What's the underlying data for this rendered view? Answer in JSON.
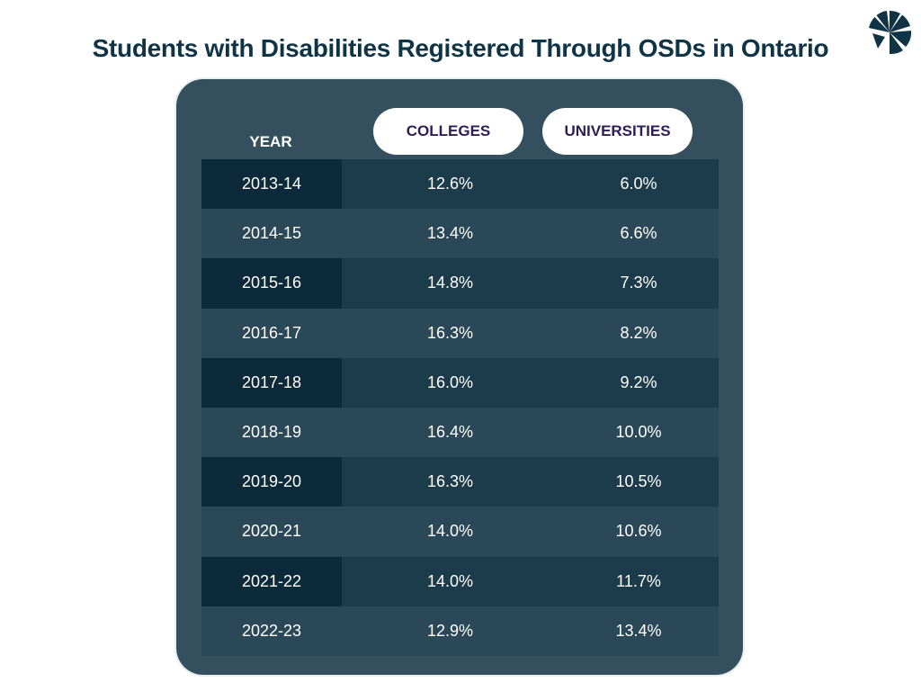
{
  "chart_data": {
    "type": "table",
    "title": "Students with Disabilities Registered Through OSDs in Ontario",
    "columns": [
      "YEAR",
      "COLLEGES",
      "UNIVERSITIES"
    ],
    "rows": [
      {
        "year": "2013-14",
        "colleges": "12.6%",
        "universities": "6.0%"
      },
      {
        "year": "2014-15",
        "colleges": "13.4%",
        "universities": "6.6%"
      },
      {
        "year": "2015-16",
        "colleges": "14.8%",
        "universities": "7.3%"
      },
      {
        "year": "2016-17",
        "colleges": "16.3%",
        "universities": "8.2%"
      },
      {
        "year": "2017-18",
        "colleges": "16.0%",
        "universities": "9.2%"
      },
      {
        "year": "2018-19",
        "colleges": "16.4%",
        "universities": "10.0%"
      },
      {
        "year": "2019-20",
        "colleges": "16.3%",
        "universities": "10.5%"
      },
      {
        "year": "2020-21",
        "colleges": "14.0%",
        "universities": "10.6%"
      },
      {
        "year": "2021-22",
        "colleges": "14.0%",
        "universities": "11.7%"
      },
      {
        "year": "2022-23",
        "colleges": "12.9%",
        "universities": "13.4%"
      }
    ]
  },
  "icons": {
    "logo": "brand-logo-icon"
  },
  "colors": {
    "title": "#0f3446",
    "card": "#34505f",
    "row_dark": "#1c3b4b",
    "row_light": "#2b4858",
    "year_dark": "#0c2a3a",
    "pill_text": "#2b1f56"
  }
}
